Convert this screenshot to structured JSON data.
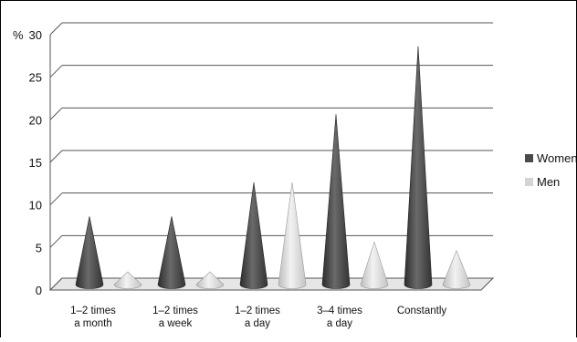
{
  "chart_data": {
    "type": "bar",
    "style": "3d-cone",
    "title": "",
    "xlabel": "",
    "ylabel": "%",
    "ylim": [
      0,
      30
    ],
    "yticks": [
      0,
      5,
      10,
      15,
      20,
      25,
      30
    ],
    "grid": true,
    "legend_position": "right",
    "categories": [
      [
        "1–2 times",
        "a month"
      ],
      [
        "1–2 times",
        "a week"
      ],
      [
        "1–2 times",
        "a day"
      ],
      [
        "3–4 times",
        "a day"
      ],
      [
        "Constantly"
      ]
    ],
    "series": [
      {
        "name": "Women",
        "color": "#4a4a4a",
        "values": [
          8,
          8,
          12,
          20,
          28
        ]
      },
      {
        "name": "Men",
        "color": "#d4d4d4",
        "values": [
          1.5,
          1.5,
          12,
          5,
          4
        ]
      }
    ]
  }
}
